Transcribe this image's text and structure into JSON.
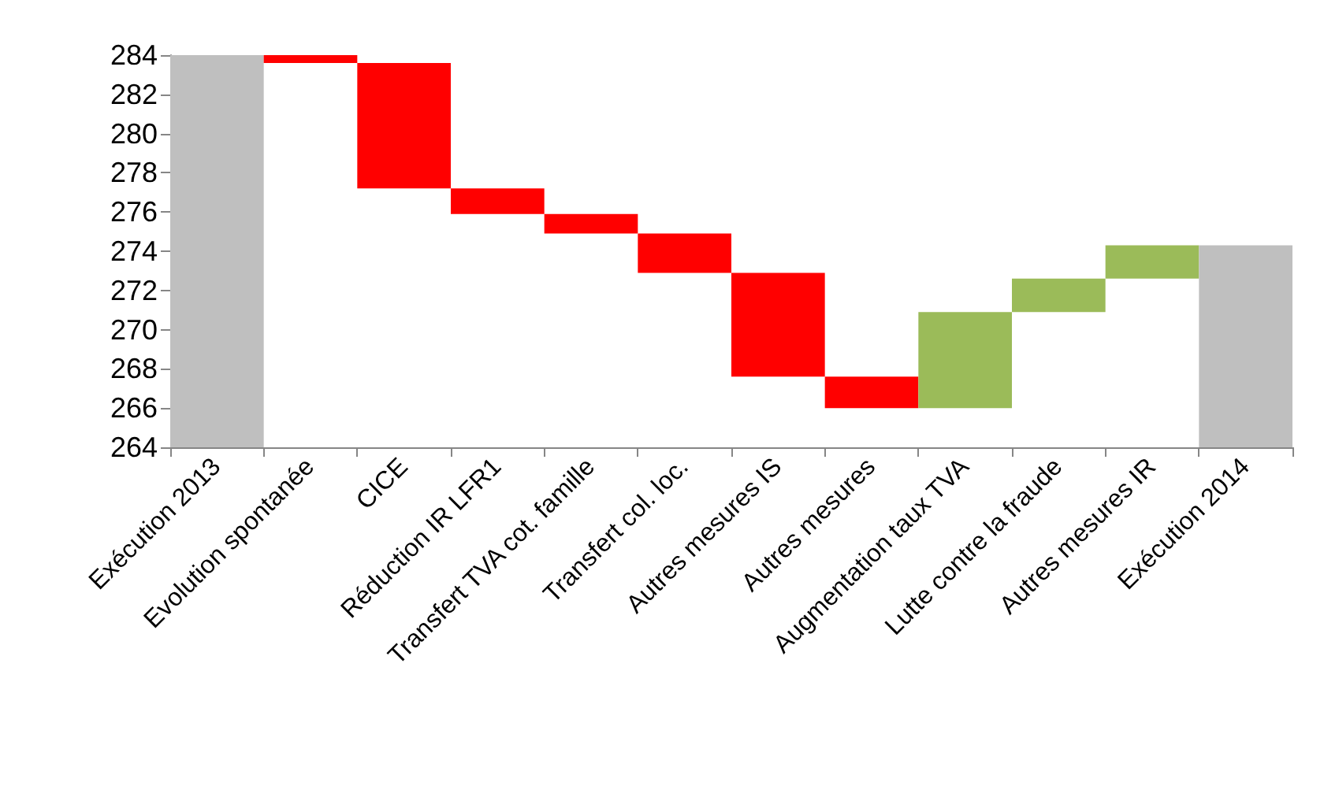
{
  "chart_data": {
    "type": "bar",
    "categories": [
      "Exécution 2013",
      "Evolution spontanée",
      "CICE",
      "Réduction IR LFR1",
      "Transfert TVA cot. famille",
      "Transfert col. loc.",
      "Autres mesures IS",
      "Autres mesures",
      "Augmentation taux TVA",
      "Lutte contre la fraude",
      "Autres mesures IR",
      "Exécution 2014"
    ],
    "base": [
      264,
      284,
      283.6,
      277.2,
      275.9,
      274.9,
      272.9,
      267.6,
      266,
      270.9,
      272.6,
      264
    ],
    "values": [
      20,
      -0.4,
      -6.4,
      -1.3,
      -1,
      -2,
      -5.3,
      -1.6,
      4.9,
      1.7,
      1.7,
      10.3
    ],
    "colors": [
      "#bfbfbf",
      "#ff0000",
      "#ff0000",
      "#ff0000",
      "#ff0000",
      "#ff0000",
      "#ff0000",
      "#ff0000",
      "#9bbb59",
      "#9bbb59",
      "#9bbb59",
      "#bfbfbf"
    ],
    "ylim": [
      264,
      284
    ],
    "yticks": [
      264,
      266,
      268,
      270,
      272,
      274,
      276,
      278,
      280,
      282,
      284
    ]
  }
}
